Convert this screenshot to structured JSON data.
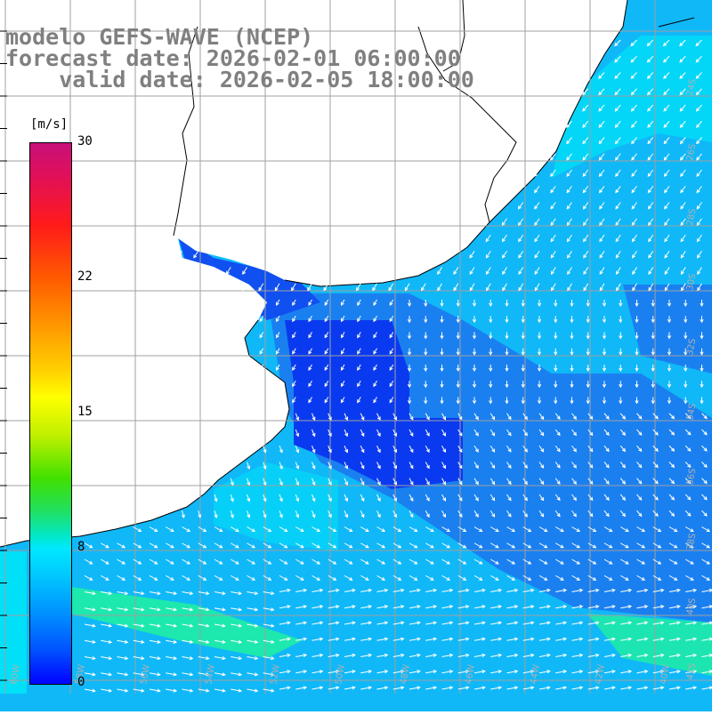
{
  "title": {
    "line1": "modelo GEFS-WAVE (NCEP)",
    "line2": "forecast date: 2026-02-01 06:00:00",
    "line3": "    valid date: 2026-02-05 18:00:00"
  },
  "colorbar": {
    "units": "[m/s]",
    "ticks": [
      "30",
      "22",
      "15",
      "8",
      "0"
    ],
    "range": [
      0,
      30
    ],
    "colors_low_to_high": [
      "#0000ff",
      "#00c8ff",
      "#00e8ff",
      "#40e000",
      "#ffff00",
      "#ff9900",
      "#ff1a1a",
      "#c8107a"
    ]
  },
  "map": {
    "variable": "wind speed and direction",
    "ocean_colors": {
      "deep_blue": "#0a3af0",
      "mid_blue": "#1a80f0",
      "light_blue": "#10b8f8",
      "cyan": "#00e0f8",
      "green_cyan": "#20f0a0",
      "land": "#ffffff"
    },
    "lon_labels": [
      "60W",
      "58W",
      "56W",
      "54W",
      "52W",
      "50W",
      "48W",
      "46W",
      "44W",
      "42W",
      "40W"
    ],
    "lat_labels": [
      "24S",
      "26S",
      "28S",
      "30S",
      "32S",
      "34S",
      "36S",
      "38S",
      "40S",
      "42S"
    ]
  }
}
